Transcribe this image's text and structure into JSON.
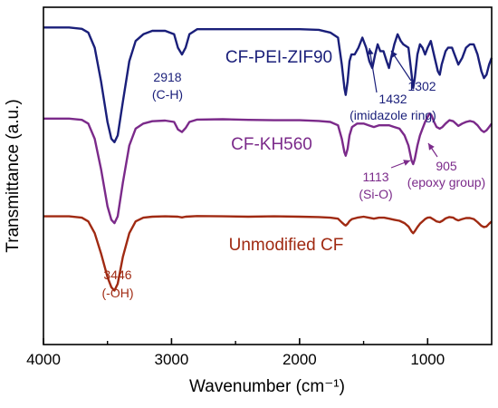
{
  "chart_data": {
    "type": "line",
    "xlabel": "Wavenumber (cm⁻¹)",
    "ylabel": "Transmittance (a.u.)",
    "xlim": [
      4000,
      500
    ],
    "x_reversed": true,
    "y_ticks_shown": false,
    "xticks": [
      4000,
      3000,
      2000,
      1000
    ],
    "xtick_labels": [
      "4000",
      "3000",
      "2000",
      "1000"
    ],
    "ylim": [
      0,
      100
    ],
    "series": [
      {
        "name": "CF-PEI-ZIF90",
        "color": "#1a1f7a",
        "points": [
          [
            4000,
            94
          ],
          [
            3800,
            94
          ],
          [
            3700,
            93.6
          ],
          [
            3650,
            92.5
          ],
          [
            3600,
            88
          ],
          [
            3550,
            78
          ],
          [
            3500,
            66
          ],
          [
            3470,
            61
          ],
          [
            3446,
            60
          ],
          [
            3420,
            62
          ],
          [
            3380,
            72
          ],
          [
            3330,
            84
          ],
          [
            3280,
            90
          ],
          [
            3220,
            92
          ],
          [
            3150,
            93
          ],
          [
            3050,
            93
          ],
          [
            2980,
            92
          ],
          [
            2950,
            88
          ],
          [
            2918,
            86
          ],
          [
            2890,
            88
          ],
          [
            2860,
            92
          ],
          [
            2800,
            93.5
          ],
          [
            2600,
            93.5
          ],
          [
            2400,
            93.5
          ],
          [
            2200,
            93.5
          ],
          [
            2000,
            93.5
          ],
          [
            1850,
            93.3
          ],
          [
            1760,
            92.5
          ],
          [
            1700,
            91
          ],
          [
            1670,
            83
          ],
          [
            1650,
            76
          ],
          [
            1640,
            74
          ],
          [
            1625,
            78
          ],
          [
            1610,
            84
          ],
          [
            1595,
            86
          ],
          [
            1570,
            86
          ],
          [
            1540,
            88
          ],
          [
            1510,
            91
          ],
          [
            1480,
            88
          ],
          [
            1455,
            84
          ],
          [
            1432,
            82
          ],
          [
            1410,
            86
          ],
          [
            1390,
            89
          ],
          [
            1370,
            87
          ],
          [
            1345,
            87
          ],
          [
            1320,
            84
          ],
          [
            1302,
            82
          ],
          [
            1285,
            85
          ],
          [
            1260,
            89
          ],
          [
            1235,
            92
          ],
          [
            1210,
            90
          ],
          [
            1190,
            89
          ],
          [
            1150,
            88
          ],
          [
            1125,
            80
          ],
          [
            1113,
            76
          ],
          [
            1100,
            79
          ],
          [
            1080,
            86
          ],
          [
            1060,
            89
          ],
          [
            1040,
            88
          ],
          [
            1020,
            86
          ],
          [
            1000,
            88
          ],
          [
            975,
            90
          ],
          [
            945,
            85
          ],
          [
            920,
            81
          ],
          [
            905,
            80
          ],
          [
            890,
            83
          ],
          [
            860,
            87
          ],
          [
            840,
            88
          ],
          [
            810,
            88
          ],
          [
            790,
            86
          ],
          [
            760,
            83
          ],
          [
            730,
            85
          ],
          [
            700,
            88
          ],
          [
            670,
            89
          ],
          [
            640,
            89
          ],
          [
            610,
            86
          ],
          [
            580,
            81
          ],
          [
            560,
            79
          ],
          [
            540,
            80
          ],
          [
            520,
            83
          ],
          [
            500,
            85
          ]
        ]
      },
      {
        "name": "CF-KH560",
        "color": "#7b2a8a",
        "points": [
          [
            4000,
            67
          ],
          [
            3800,
            67
          ],
          [
            3700,
            66.6
          ],
          [
            3650,
            65.5
          ],
          [
            3600,
            61
          ],
          [
            3550,
            52
          ],
          [
            3500,
            41
          ],
          [
            3470,
            37
          ],
          [
            3446,
            36
          ],
          [
            3420,
            38
          ],
          [
            3380,
            48
          ],
          [
            3330,
            59
          ],
          [
            3280,
            64
          ],
          [
            3220,
            65.5
          ],
          [
            3150,
            66.2
          ],
          [
            3050,
            66.4
          ],
          [
            2980,
            66
          ],
          [
            2950,
            63.8
          ],
          [
            2918,
            63
          ],
          [
            2890,
            64.2
          ],
          [
            2860,
            66
          ],
          [
            2800,
            66.7
          ],
          [
            2600,
            66.8
          ],
          [
            2400,
            66.6
          ],
          [
            2200,
            66.5
          ],
          [
            2000,
            66.5
          ],
          [
            1850,
            66.3
          ],
          [
            1760,
            66
          ],
          [
            1700,
            65
          ],
          [
            1670,
            61
          ],
          [
            1650,
            57
          ],
          [
            1640,
            56
          ],
          [
            1625,
            58
          ],
          [
            1610,
            62
          ],
          [
            1590,
            64.5
          ],
          [
            1550,
            65.5
          ],
          [
            1500,
            65.5
          ],
          [
            1460,
            65
          ],
          [
            1420,
            64.5
          ],
          [
            1380,
            65
          ],
          [
            1340,
            65
          ],
          [
            1300,
            65
          ],
          [
            1260,
            64.5
          ],
          [
            1220,
            64
          ],
          [
            1180,
            62
          ],
          [
            1150,
            59
          ],
          [
            1125,
            54.5
          ],
          [
            1113,
            53.5
          ],
          [
            1100,
            55
          ],
          [
            1080,
            59
          ],
          [
            1060,
            62
          ],
          [
            1040,
            64
          ],
          [
            1020,
            66
          ],
          [
            1000,
            67.5
          ],
          [
            985,
            68.5
          ],
          [
            970,
            68
          ],
          [
            950,
            66
          ],
          [
            930,
            64.5
          ],
          [
            905,
            64
          ],
          [
            885,
            64.5
          ],
          [
            860,
            65.5
          ],
          [
            830,
            66.5
          ],
          [
            800,
            66.2
          ],
          [
            780,
            65.5
          ],
          [
            760,
            64.8
          ],
          [
            730,
            65.5
          ],
          [
            700,
            66
          ],
          [
            670,
            66.3
          ],
          [
            640,
            66
          ],
          [
            610,
            65
          ],
          [
            580,
            63.5
          ],
          [
            560,
            63
          ],
          [
            540,
            63.5
          ],
          [
            520,
            64.5
          ],
          [
            500,
            65.5
          ]
        ]
      },
      {
        "name": "Unmodified CF",
        "color": "#a02a12",
        "points": [
          [
            4000,
            38
          ],
          [
            3800,
            38
          ],
          [
            3700,
            37.6
          ],
          [
            3650,
            36.5
          ],
          [
            3600,
            33
          ],
          [
            3550,
            27
          ],
          [
            3500,
            20
          ],
          [
            3470,
            17
          ],
          [
            3446,
            16
          ],
          [
            3420,
            18
          ],
          [
            3380,
            26
          ],
          [
            3330,
            33
          ],
          [
            3280,
            36.5
          ],
          [
            3220,
            37.6
          ],
          [
            3150,
            37.9
          ],
          [
            3050,
            38
          ],
          [
            2950,
            37.9
          ],
          [
            2918,
            37.7
          ],
          [
            2890,
            37.9
          ],
          [
            2800,
            38.1
          ],
          [
            2600,
            38
          ],
          [
            2400,
            37.9
          ],
          [
            2200,
            38
          ],
          [
            2000,
            37.9
          ],
          [
            1850,
            37.8
          ],
          [
            1760,
            37.6
          ],
          [
            1700,
            37.3
          ],
          [
            1670,
            36.2
          ],
          [
            1650,
            35.5
          ],
          [
            1640,
            35.3
          ],
          [
            1625,
            35.8
          ],
          [
            1610,
            36.6
          ],
          [
            1590,
            37.2
          ],
          [
            1550,
            37.6
          ],
          [
            1500,
            37.9
          ],
          [
            1460,
            37.6
          ],
          [
            1420,
            37.3
          ],
          [
            1380,
            37.6
          ],
          [
            1340,
            37.6
          ],
          [
            1300,
            37.3
          ],
          [
            1260,
            37
          ],
          [
            1220,
            36.7
          ],
          [
            1180,
            36
          ],
          [
            1150,
            35
          ],
          [
            1125,
            33.5
          ],
          [
            1113,
            33
          ],
          [
            1100,
            33.6
          ],
          [
            1080,
            34.8
          ],
          [
            1060,
            35.8
          ],
          [
            1040,
            36.5
          ],
          [
            1020,
            37.2
          ],
          [
            1000,
            37.6
          ],
          [
            980,
            37.7
          ],
          [
            950,
            37
          ],
          [
            930,
            36.5
          ],
          [
            905,
            36.3
          ],
          [
            885,
            36.7
          ],
          [
            860,
            37.4
          ],
          [
            830,
            37.8
          ],
          [
            800,
            37.6
          ],
          [
            780,
            37.1
          ],
          [
            760,
            36.8
          ],
          [
            730,
            37.2
          ],
          [
            700,
            37.5
          ],
          [
            670,
            37.5
          ],
          [
            640,
            37.2
          ],
          [
            610,
            36.3
          ],
          [
            580,
            35.2
          ],
          [
            560,
            34.8
          ],
          [
            540,
            35
          ],
          [
            520,
            35.8
          ],
          [
            500,
            36.5
          ]
        ]
      }
    ],
    "series_labels": [
      {
        "text": "CF-PEI-ZIF90",
        "color": "#1a1f7a"
      },
      {
        "text": "CF-KH560",
        "color": "#7b2a8a"
      },
      {
        "text": "Unmodified CF",
        "color": "#a02a12"
      }
    ],
    "annotations": [
      {
        "lines": [
          "2918",
          "(C-H)"
        ],
        "color": "#1a1f7a"
      },
      {
        "lines": [
          "1432",
          "(imidazole ring)"
        ],
        "color": "#1a1f7a",
        "arrow_to": 1432
      },
      {
        "lines": [
          "1302"
        ],
        "color": "#1a1f7a",
        "arrow_to": 1302
      },
      {
        "lines": [
          "1113",
          "(Si-O)"
        ],
        "color": "#7b2a8a",
        "arrow_to": 1113
      },
      {
        "lines": [
          "905",
          "(epoxy group)"
        ],
        "color": "#7b2a8a",
        "arrow_to": 905
      },
      {
        "lines": [
          "3446",
          "(-OH)"
        ],
        "color": "#a02a12"
      }
    ]
  }
}
